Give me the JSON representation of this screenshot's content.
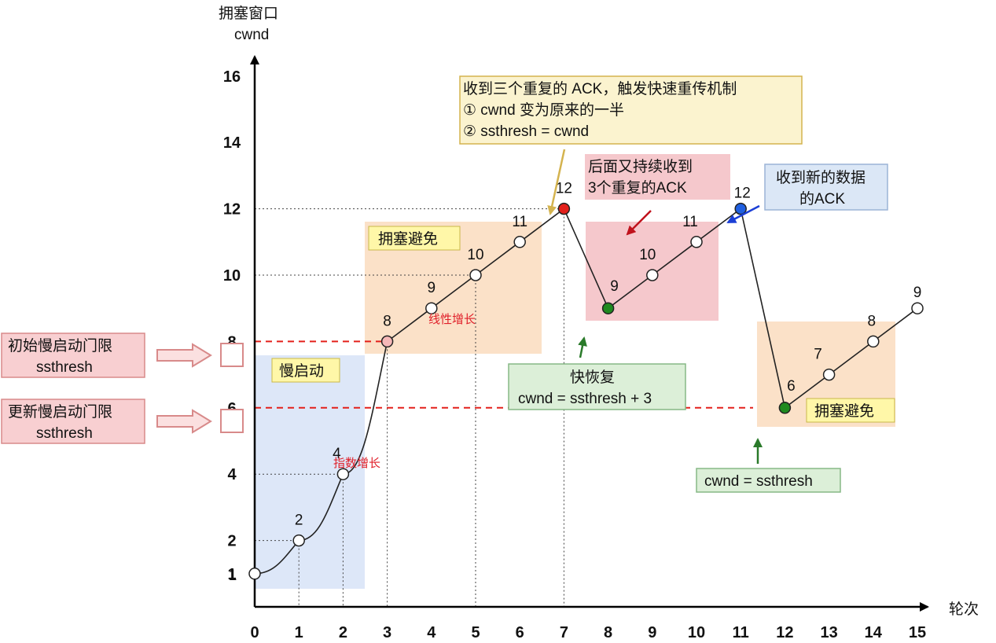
{
  "chart_data": {
    "type": "line",
    "y_axis_label": [
      "拥塞窗口",
      "cwnd"
    ],
    "x_axis_label": "轮次",
    "x_ticks": [
      "0",
      "1",
      "2",
      "3",
      "4",
      "5",
      "6",
      "7",
      "8",
      "9",
      "10",
      "11",
      "12",
      "13",
      "14",
      "15"
    ],
    "y_ticks": [
      {
        "v": 1,
        "label": "1"
      },
      {
        "v": 2,
        "label": "2"
      },
      {
        "v": 4,
        "label": "4"
      },
      {
        "v": 6,
        "label": "6"
      },
      {
        "v": 8,
        "label": "8"
      },
      {
        "v": 10,
        "label": "10"
      },
      {
        "v": 12,
        "label": "12"
      },
      {
        "v": 14,
        "label": "14"
      },
      {
        "v": 16,
        "label": "16"
      }
    ],
    "ylim": [
      0,
      16
    ],
    "xlim": [
      0,
      15
    ],
    "points": [
      {
        "x": 0,
        "y": 1,
        "label": "1",
        "color": "#ffffff"
      },
      {
        "x": 1,
        "y": 2,
        "label": "2",
        "color": "#ffffff"
      },
      {
        "x": 2,
        "y": 4,
        "label": "4",
        "color": "#ffffff"
      },
      {
        "x": 3,
        "y": 8,
        "label": "8",
        "color": "#f6b8b8"
      },
      {
        "x": 4,
        "y": 9,
        "label": "9",
        "color": "#ffffff"
      },
      {
        "x": 5,
        "y": 10,
        "label": "10",
        "color": "#ffffff"
      },
      {
        "x": 6,
        "y": 11,
        "label": "11",
        "color": "#ffffff"
      },
      {
        "x": 7,
        "y": 12,
        "label": "12",
        "color": "#e3201b"
      },
      {
        "x": 8,
        "y": 9,
        "label": "9",
        "color": "#1f8a1f"
      },
      {
        "x": 9,
        "y": 10,
        "label": "10",
        "color": "#ffffff"
      },
      {
        "x": 10,
        "y": 11,
        "label": "11",
        "color": "#ffffff"
      },
      {
        "x": 11,
        "y": 12,
        "label": "12",
        "color": "#1f5fe0"
      },
      {
        "x": 12,
        "y": 6,
        "label": "6",
        "color": "#1f8a1f"
      },
      {
        "x": 13,
        "y": 7,
        "label": "7",
        "color": "#ffffff"
      },
      {
        "x": 14,
        "y": 8,
        "label": "8",
        "color": "#ffffff"
      },
      {
        "x": 15,
        "y": 9,
        "label": "9",
        "color": "#ffffff"
      }
    ],
    "thresholds": [
      {
        "y": 8,
        "label": "8",
        "color": "#e3201b"
      },
      {
        "y": 6,
        "label": "6",
        "color": "#e3201b"
      }
    ]
  },
  "annotations": {
    "slow_start": "慢启动",
    "exp_growth": "指数增长",
    "cong_avoid_1": "拥塞避免",
    "linear_growth": "线性增长",
    "cong_avoid_2": "拥塞避免",
    "triple_ack": [
      "收到三个重复的 ACK，触发快速重传机制",
      "① cwnd 变为原来的一半",
      "② ssthresh = cwnd"
    ],
    "continued_ack": [
      "后面又持续收到",
      "3个重复的ACK"
    ],
    "new_ack": [
      "收到新的数据",
      "的ACK"
    ],
    "fast_recovery": [
      "快恢复",
      "cwnd = ssthresh + 3"
    ],
    "cwnd_eq_ssthresh": "cwnd = ssthresh",
    "initial_ssthresh": [
      "初始慢启动门限",
      "ssthresh"
    ],
    "updated_ssthresh": [
      "更新慢启动门限",
      "ssthresh"
    ]
  },
  "colors": {
    "blue_region": "#dde7f8",
    "orange_region": "#fbe1c8",
    "pink_region": "#f5c8cc",
    "yellow_label": "#fff7a8",
    "note_box": "#fbf3cf",
    "green_box": "#dcefd8",
    "blue_box": "#dbe7f6",
    "red_side_box": "#f8cfd1"
  }
}
